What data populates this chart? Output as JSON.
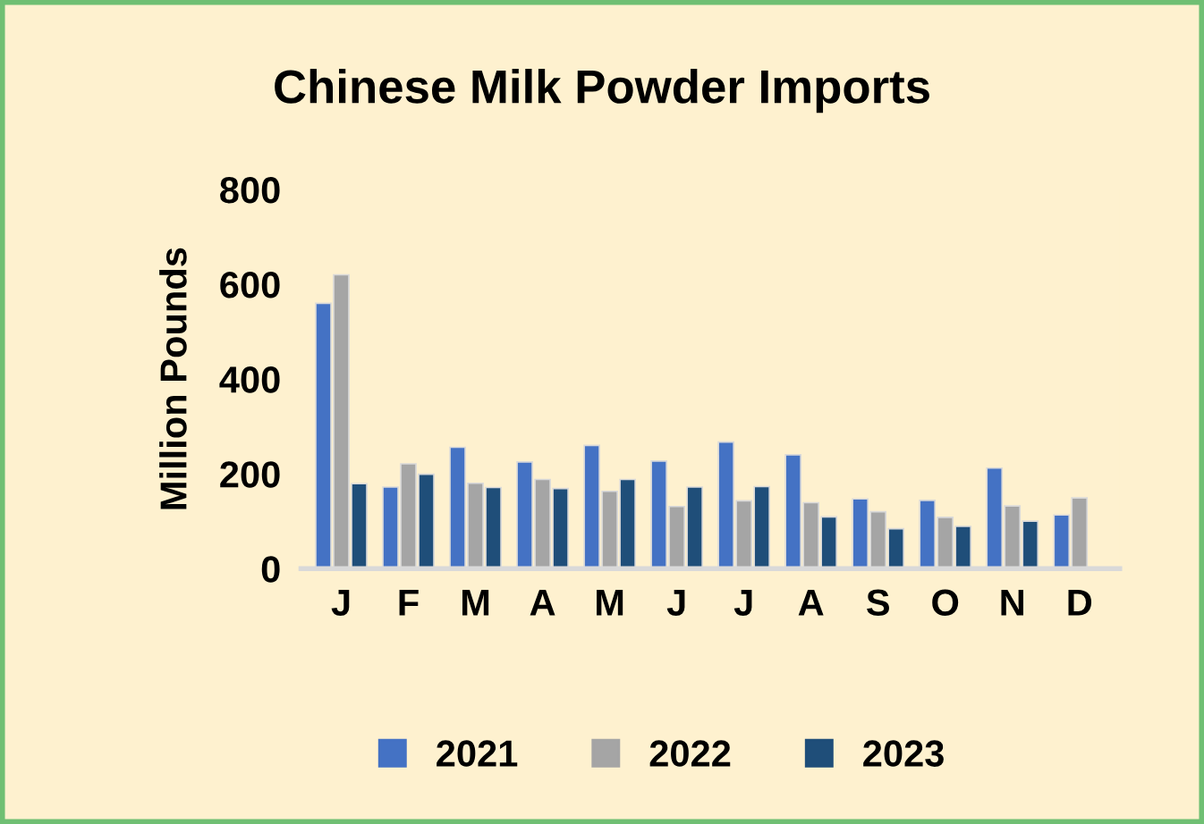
{
  "chart_data": {
    "type": "bar",
    "title": "Chinese Milk Powder Imports",
    "ylabel": "Million Pounds",
    "categories": [
      "J",
      "F",
      "M",
      "A",
      "M",
      "J",
      "J",
      "A",
      "S",
      "O",
      "N",
      "D"
    ],
    "series": [
      {
        "name": "2021",
        "color": "#4472c4",
        "values": [
          560,
          172,
          256,
          225,
          260,
          227,
          267,
          240,
          147,
          144,
          212,
          113
        ]
      },
      {
        "name": "2022",
        "color": "#a5a5a5",
        "values": [
          620,
          221,
          180,
          188,
          163,
          131,
          143,
          139,
          120,
          108,
          132,
          149
        ]
      },
      {
        "name": "2023",
        "color": "#1f4e79",
        "values": [
          179,
          199,
          171,
          169,
          188,
          172,
          173,
          109,
          84,
          89,
          100,
          null
        ]
      }
    ],
    "ylim": [
      0,
      800
    ],
    "yticks": [
      0,
      200,
      400,
      600,
      800
    ],
    "grid": false,
    "legend": "bottom"
  }
}
